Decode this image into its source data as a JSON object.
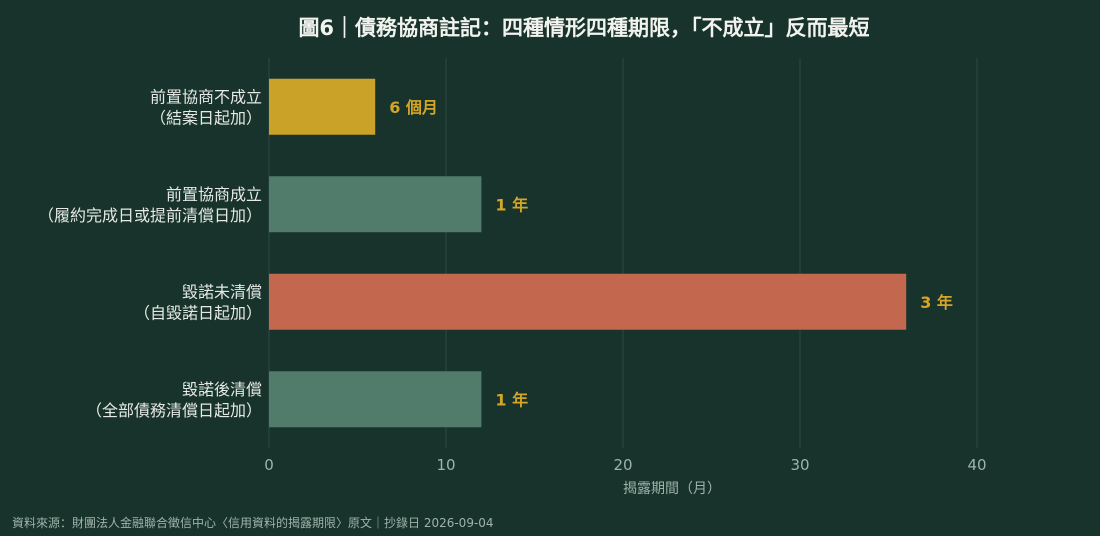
{
  "chart_data": {
    "type": "bar",
    "orientation": "horizontal",
    "title": "圖6｜債務協商註記：四種情形四種期限，「不成立」反而最短",
    "xlabel": "揭露期間（月）",
    "ylabel": "",
    "xlim": [
      0,
      40
    ],
    "xticks": [
      0,
      10,
      20,
      30,
      40
    ],
    "grid": true,
    "categories": [
      [
        "前置協商不成立",
        "（結案日起加）"
      ],
      [
        "前置協商成立",
        "（履約完成日或提前清償日加）"
      ],
      [
        "毀諾未清償",
        "（自毀諾日起加）"
      ],
      [
        "毀諾後清償",
        "（全部債務清償日起加）"
      ]
    ],
    "values": [
      6,
      12,
      36,
      12
    ],
    "value_labels": [
      "6 個月",
      "1 年",
      "3 年",
      "1 年"
    ],
    "colors": [
      "#c9a227",
      "#517c6b",
      "#c4674f",
      "#517c6b"
    ],
    "value_label_color": "#d3a62a"
  },
  "footer": {
    "source": "資料來源：財團法人金融聯合徵信中心〈信用資料的揭露期限〉原文｜抄錄日 2026-09-04"
  }
}
